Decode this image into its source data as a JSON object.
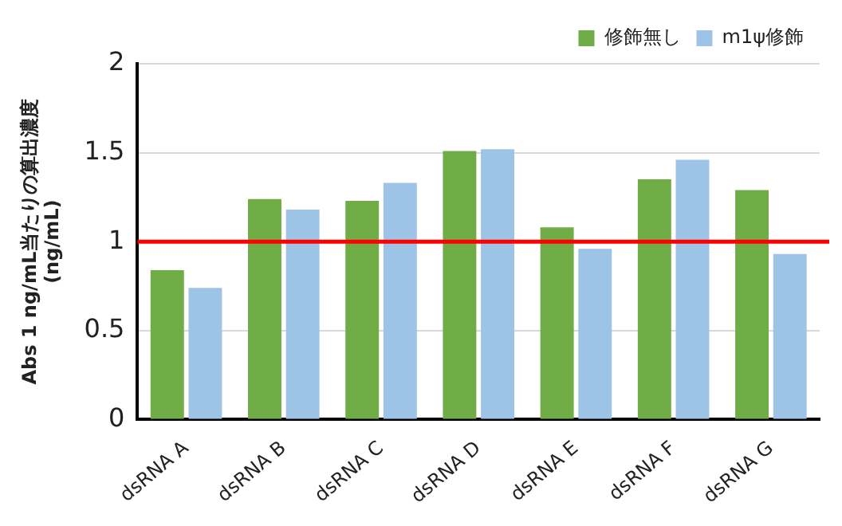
{
  "chart_data": {
    "type": "bar",
    "ylabel": "Abs 1 ng/mL当たりの算出濃度\n(ng/mL)",
    "categories": [
      "dsRNA A",
      "dsRNA B",
      "dsRNA C",
      "dsRNA D",
      "dsRNA E",
      "dsRNA F",
      "dsRNA G"
    ],
    "series": [
      {
        "name": "修飾無し",
        "color": "#70ad47",
        "values": [
          0.84,
          1.24,
          1.23,
          1.51,
          1.08,
          1.35,
          1.29
        ]
      },
      {
        "name": "m1ψ修飾",
        "color": "#9dc3e6",
        "values": [
          0.74,
          1.18,
          1.33,
          1.52,
          0.96,
          1.46,
          0.93
        ]
      }
    ],
    "ylim": [
      0,
      2
    ],
    "yticks": [
      0,
      0.5,
      1,
      1.5,
      2
    ],
    "grid": "y",
    "legend": "top right",
    "ref_lines": [
      {
        "axis": "y",
        "value": 1,
        "color": "#ff0000"
      }
    ]
  }
}
